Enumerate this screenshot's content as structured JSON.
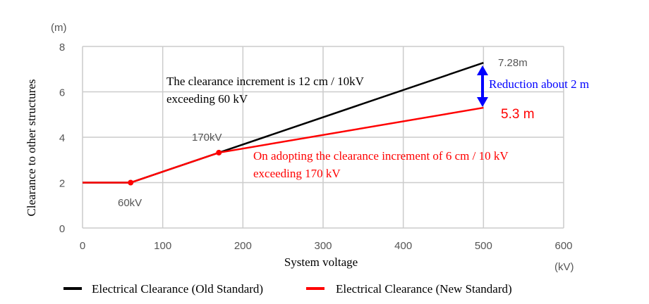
{
  "chart_data": {
    "type": "line",
    "xlabel": "System voltage",
    "ylabel": "Clearance to other structures",
    "x_unit": "(kV)",
    "y_unit": "(m)",
    "xlim": [
      0,
      600
    ],
    "ylim": [
      0,
      8
    ],
    "xticks": [
      0,
      100,
      200,
      300,
      400,
      500,
      600
    ],
    "yticks": [
      0,
      2,
      4,
      6,
      8
    ],
    "grid": true,
    "legend_placement": "bottom",
    "series": [
      {
        "name": "Electrical Clearance (Old Standard)",
        "color": "#000000",
        "x": [
          0,
          60,
          170,
          500
        ],
        "y": [
          2,
          2,
          3.32,
          7.28
        ]
      },
      {
        "name": "Electrical Clearance (New Standard)",
        "color": "#ff0000",
        "x": [
          0,
          60,
          170,
          500
        ],
        "y": [
          2,
          2,
          3.32,
          5.3
        ]
      }
    ],
    "markers": [
      {
        "x": 60,
        "y": 2
      },
      {
        "x": 170,
        "y": 3.32
      }
    ],
    "annotations": {
      "point_60": "60kV",
      "point_170": "170kV",
      "old_end": "7.28m",
      "new_end": "5.3 m",
      "reduction": "Reduction about 2 m",
      "old_note_1": "The clearance increment is 12 cm / 10kV",
      "old_note_2": "exceeding 60 kV",
      "new_note_1": "On adopting the clearance increment of 6 cm / 10 kV",
      "new_note_2": "exceeding 170 kV"
    },
    "colors": {
      "old": "#000000",
      "new": "#ff0000",
      "reduction": "#0000ff",
      "grid": "#cccccc"
    }
  }
}
